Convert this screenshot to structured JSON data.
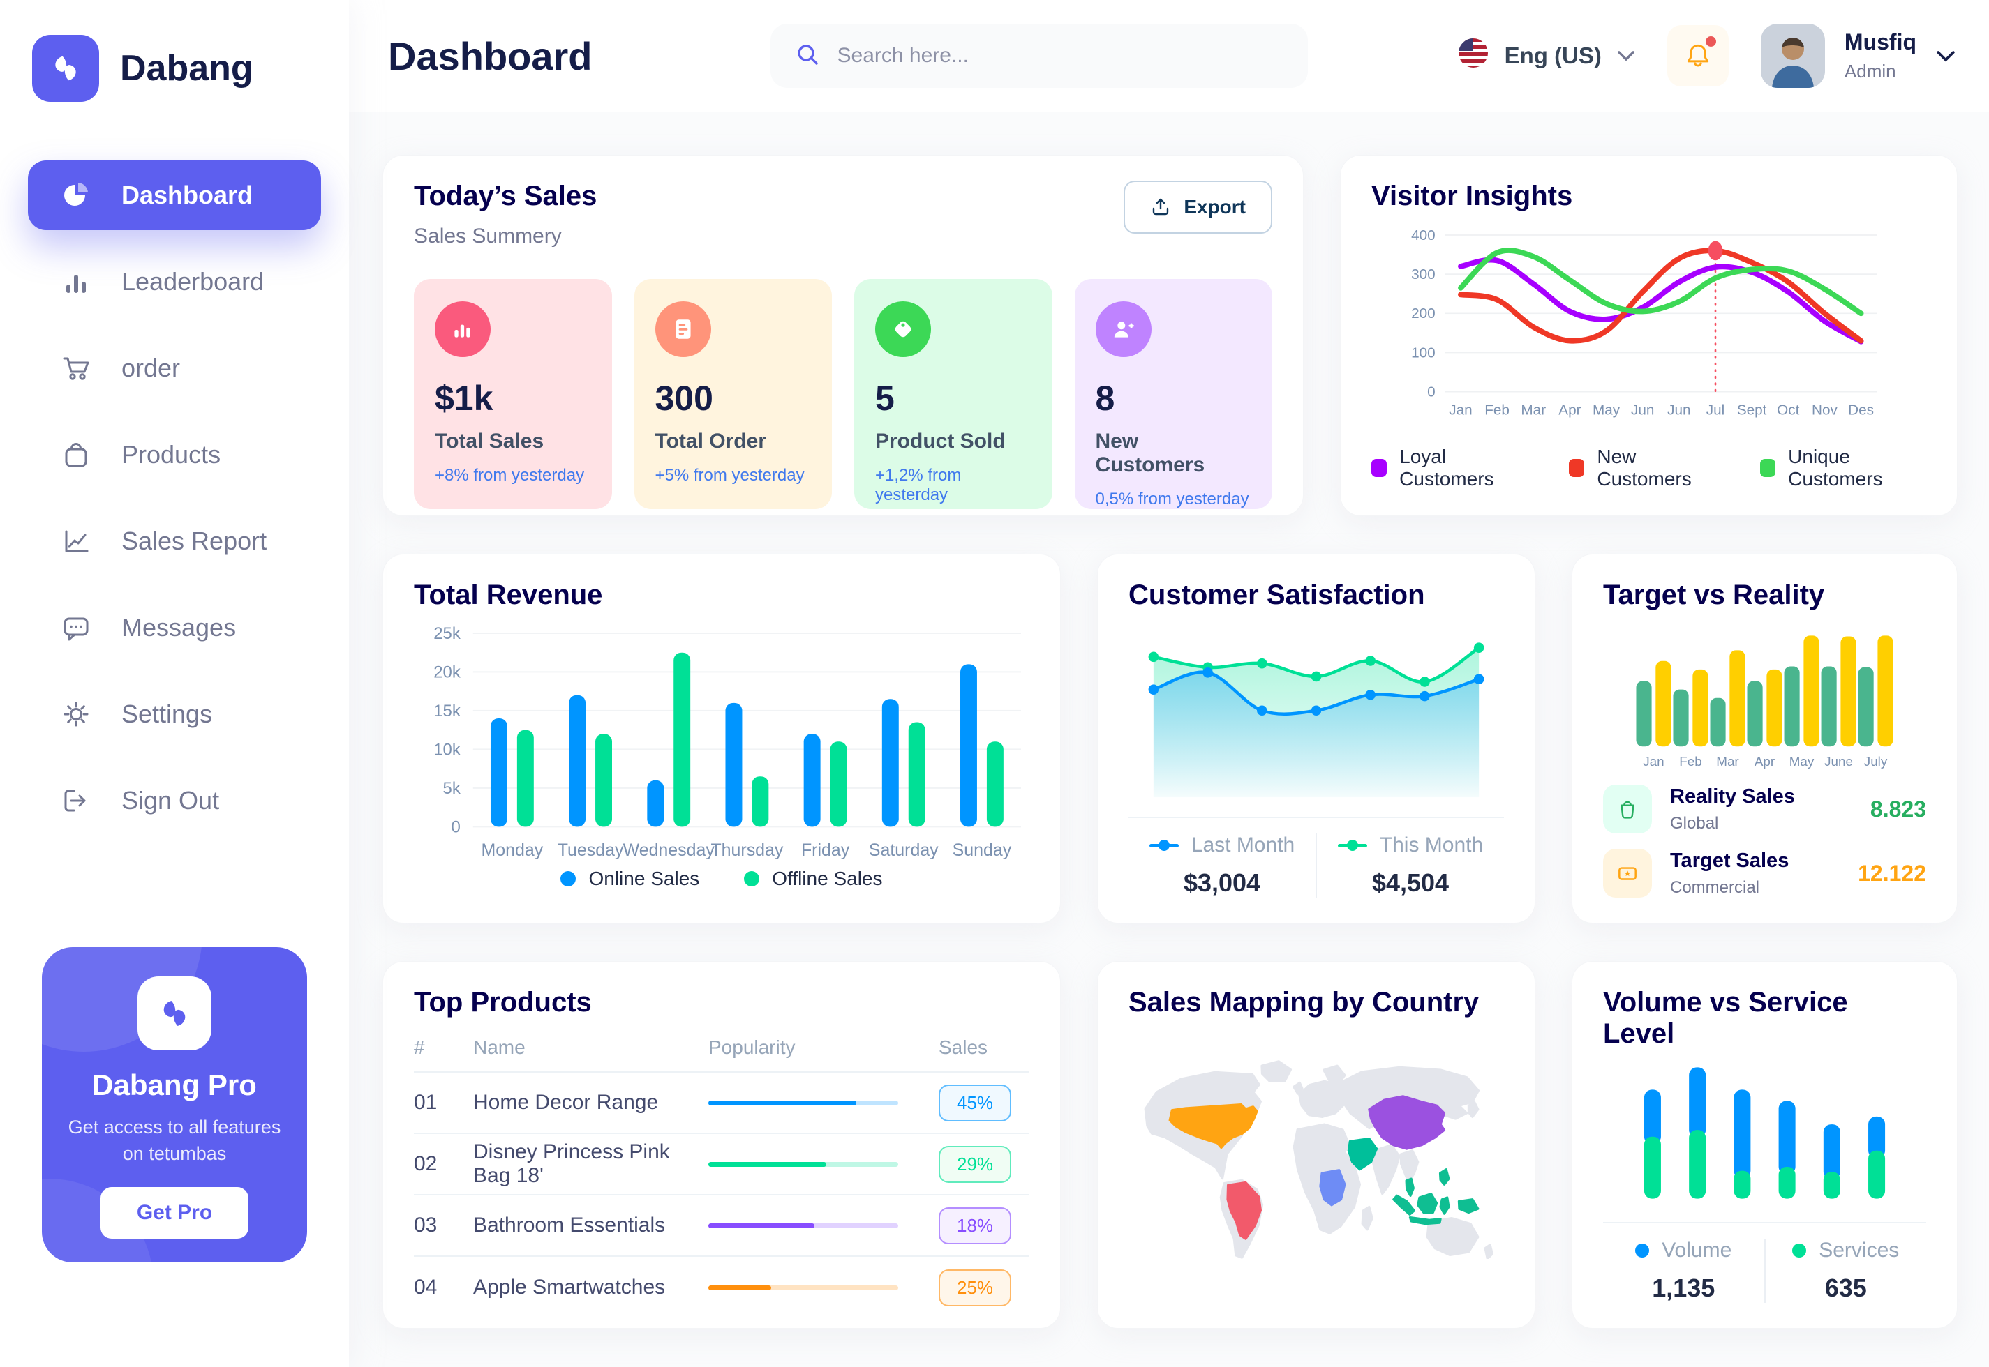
{
  "brand": {
    "name": "Dabang"
  },
  "header": {
    "title": "Dashboard",
    "search_placeholder": "Search here...",
    "language": "Eng (US)",
    "user_name": "Musfiq",
    "user_role": "Admin"
  },
  "sidebar": {
    "items": [
      {
        "label": "Dashboard",
        "icon": "pie-chart-icon",
        "active": true
      },
      {
        "label": "Leaderboard",
        "icon": "bar-chart-icon",
        "active": false
      },
      {
        "label": "order",
        "icon": "cart-icon",
        "active": false
      },
      {
        "label": "Products",
        "icon": "bag-icon",
        "active": false
      },
      {
        "label": "Sales Report",
        "icon": "line-chart-icon",
        "active": false
      },
      {
        "label": "Messages",
        "icon": "message-icon",
        "active": false
      },
      {
        "label": "Settings",
        "icon": "gear-icon",
        "active": false
      },
      {
        "label": "Sign Out",
        "icon": "sign-out-icon",
        "active": false
      }
    ],
    "pro": {
      "title": "Dabang Pro",
      "subtitle": "Get access to all features on tetumbas",
      "button": "Get Pro"
    }
  },
  "today_sales": {
    "title": "Today’s Sales",
    "subtitle": "Sales Summery",
    "export_label": "Export",
    "cards": [
      {
        "value": "$1k",
        "label": "Total Sales",
        "delta": "+8% from yesterday",
        "bg": "#FFE2E5",
        "icon_bg": "#FA5A7D",
        "icon": "bar-chart-icon"
      },
      {
        "value": "300",
        "label": "Total Order",
        "delta": "+5% from yesterday",
        "bg": "#FFF4DE",
        "icon_bg": "#FF947A",
        "icon": "order-list-icon"
      },
      {
        "value": "5",
        "label": "Product Sold",
        "delta": "+1,2% from yesterday",
        "bg": "#DCFCE7",
        "icon_bg": "#3CD856",
        "icon": "tag-icon"
      },
      {
        "value": "8",
        "label": "New Customers",
        "delta": "0,5% from yesterday",
        "bg": "#F3E8FF",
        "icon_bg": "#BF83FF",
        "icon": "new-customer-icon"
      }
    ]
  },
  "chart_data": [
    {
      "id": "visitor_insights",
      "type": "line",
      "title": "Visitor Insights",
      "x": [
        "Jan",
        "Feb",
        "Mar",
        "Apr",
        "May",
        "Jun",
        "Jun",
        "Jul",
        "Sept",
        "Oct",
        "Nov",
        "Des"
      ],
      "ylim": [
        0,
        400
      ],
      "yticks": [
        0,
        100,
        200,
        300,
        400
      ],
      "grid": true,
      "legend_position": "bottom",
      "series": [
        {
          "name": "Loyal Customers",
          "color": "#A700FF",
          "values": [
            320,
            335,
            275,
            205,
            185,
            215,
            280,
            318,
            305,
            255,
            180,
            128
          ]
        },
        {
          "name": "New Customers",
          "color": "#EF3826",
          "values": [
            248,
            235,
            165,
            130,
            155,
            255,
            340,
            360,
            330,
            280,
            200,
            130
          ]
        },
        {
          "name": "Unique Customers",
          "color": "#3CD856",
          "values": [
            265,
            355,
            345,
            285,
            225,
            205,
            230,
            290,
            312,
            308,
            262,
            200
          ]
        }
      ],
      "annotation": {
        "x": "Jul",
        "x_index": 7,
        "value": 360,
        "color": "#F64E60"
      }
    },
    {
      "id": "total_revenue",
      "type": "bar",
      "title": "Total Revenue",
      "categories": [
        "Monday",
        "Tuesday",
        "Wednesday",
        "Thursday",
        "Friday",
        "Saturday",
        "Sunday"
      ],
      "ylim": [
        0,
        25000
      ],
      "ytick_labels": [
        "0",
        "5k",
        "10k",
        "15k",
        "20k",
        "25k"
      ],
      "grid": true,
      "legend_position": "bottom",
      "series": [
        {
          "name": "Online Sales",
          "color": "#0095FF",
          "values": [
            14000,
            17000,
            6000,
            16000,
            12000,
            16500,
            21000
          ]
        },
        {
          "name": "Offline Sales",
          "color": "#00E096",
          "values": [
            12500,
            12000,
            22500,
            6500,
            11000,
            13500,
            11000
          ]
        }
      ]
    },
    {
      "id": "customer_satisfaction",
      "type": "area",
      "title": "Customer Satisfaction",
      "ylim": [
        0,
        5
      ],
      "grid": false,
      "legend_position": "bottom",
      "series": [
        {
          "name": "Last Month",
          "color": "#0095FF",
          "legend_value": "$3,004",
          "values": [
            3.0,
            3.65,
            2.2,
            2.2,
            2.8,
            2.75,
            3.4
          ]
        },
        {
          "name": "This Month",
          "color": "#00E096",
          "legend_value": "$4,504",
          "values": [
            4.25,
            3.85,
            4.0,
            3.5,
            4.1,
            3.3,
            4.6
          ]
        }
      ]
    },
    {
      "id": "target_vs_reality",
      "type": "bar",
      "title": "Target vs Reality",
      "categories": [
        "Jan",
        "Feb",
        "Mar",
        "Apr",
        "May",
        "June",
        "July"
      ],
      "ylim": [
        0,
        15
      ],
      "grid": false,
      "series": [
        {
          "name": "Reality Sales",
          "color": "#4AB58E",
          "values": [
            8.5,
            7.4,
            6.3,
            8.5,
            10.4,
            10.4,
            10.3
          ]
        },
        {
          "name": "Target Sales",
          "color": "#FFCF00",
          "values": [
            11.1,
            10.0,
            12.5,
            10.0,
            14.4,
            14.3,
            14.4
          ]
        }
      ],
      "summary": [
        {
          "title": "Reality Sales",
          "subtitle": "Global",
          "value": "8.823",
          "value_color": "#27AE60",
          "icon": "bag-icon",
          "icon_bg": "#E2FFF3"
        },
        {
          "title": "Target Sales",
          "subtitle": "Commercial",
          "value": "12.122",
          "value_color": "#FFA412",
          "icon": "ticket-icon",
          "icon_bg": "#FFF4DE"
        }
      ]
    },
    {
      "id": "top_products",
      "type": "table",
      "title": "Top Products",
      "columns": [
        "#",
        "Name",
        "Popularity",
        "Sales"
      ],
      "rows": [
        {
          "num": "01",
          "name": "Home Decor Range",
          "popularity": 78,
          "sales": "45%",
          "color": "#0095FF",
          "badge_bg": "#F0F9FF"
        },
        {
          "num": "02",
          "name": "Disney Princess Pink Bag 18'",
          "popularity": 62,
          "sales": "29%",
          "color": "#00E096",
          "badge_bg": "#F0FDF4"
        },
        {
          "num": "03",
          "name": "Bathroom Essentials",
          "popularity": 56,
          "sales": "18%",
          "color": "#884DFF",
          "badge_bg": "#F6F0FF"
        },
        {
          "num": "04",
          "name": "Apple Smartwatches",
          "popularity": 33,
          "sales": "25%",
          "color": "#FF8F0D",
          "badge_bg": "#FFF6EA"
        }
      ]
    },
    {
      "id": "sales_mapping",
      "type": "map",
      "title": "Sales Mapping by Country",
      "base_color": "#E4E6EC",
      "countries": [
        {
          "name": "United States",
          "color": "#FFA412"
        },
        {
          "name": "Brazil",
          "color": "#F25A6B"
        },
        {
          "name": "DR Congo",
          "color": "#6E8CF5"
        },
        {
          "name": "Saudi Arabia",
          "color": "#00BF9A"
        },
        {
          "name": "China",
          "color": "#9B51E0"
        },
        {
          "name": "Indonesia",
          "color": "#0FBE92"
        }
      ]
    },
    {
      "id": "volume_vs_service",
      "type": "stacked-bar",
      "title": "Volume vs Service Level",
      "series": [
        {
          "name": "Volume",
          "color": "#0095FF",
          "total": "1,135",
          "values": [
            8.4,
            11.2,
            14.5,
            11.8,
            8.5,
            6.1
          ]
        },
        {
          "name": "Services",
          "color": "#00E096",
          "total": "635",
          "values": [
            11.1,
            12.3,
            5.0,
            5.7,
            4.8,
            8.6
          ]
        }
      ]
    }
  ]
}
